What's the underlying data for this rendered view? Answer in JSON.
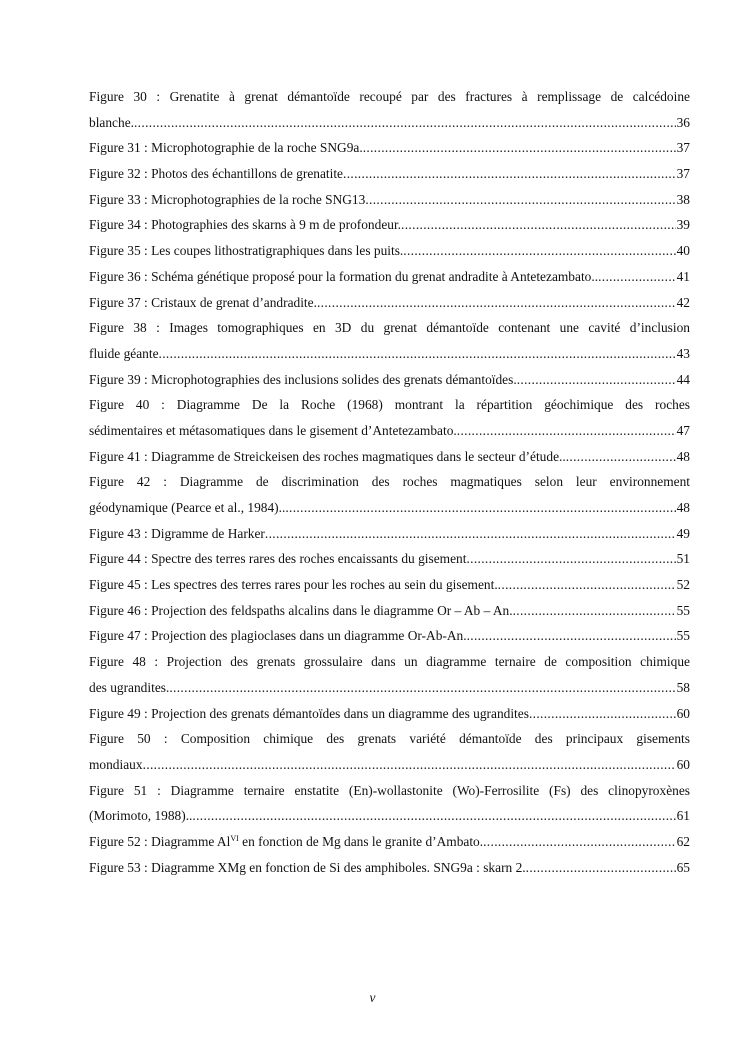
{
  "entries": [
    {
      "lines": [
        "Figure 30 : Grenatite à grenat démantoïde recoupé par des fractures à remplissage de calcédoine",
        "blanche."
      ],
      "page": "36"
    },
    {
      "lines": [
        "Figure 31 : Microphotographie de la roche SNG9a. "
      ],
      "page": "37"
    },
    {
      "lines": [
        "Figure 32 : Photos des échantillons de grenatite"
      ],
      "page": "37"
    },
    {
      "lines": [
        "Figure 33 : Microphotographies de la roche SNG13"
      ],
      "page": "38"
    },
    {
      "lines": [
        "Figure 34 : Photographies des skarns à 9 m de profondeur. "
      ],
      "page": "39"
    },
    {
      "lines": [
        "Figure 35 : Les coupes lithostratigraphiques dans les puits."
      ],
      "page": "40"
    },
    {
      "lines": [
        "Figure 36 : Schéma génétique proposé pour la formation du grenat andradite à Antetezambato.. "
      ],
      "page": "41"
    },
    {
      "lines": [
        "Figure 37 : Cristaux de grenat d’andradite. "
      ],
      "page": "42"
    },
    {
      "lines": [
        "Figure 38 : Images tomographiques en 3D du grenat démantoïde contenant une cavité d’inclusion",
        "fluide géante"
      ],
      "page": "43"
    },
    {
      "lines": [
        "Figure 39 : Microphotographies des inclusions solides des grenats démantoïdes. "
      ],
      "page": "44"
    },
    {
      "lines": [
        "Figure 40 : Diagramme De la Roche (1968) montrant la répartition géochimique des roches",
        "sédimentaires et métasomatiques dans le gisement d’Antetezambato. "
      ],
      "page": "47"
    },
    {
      "lines": [
        "Figure 41 : Diagramme de Streickeisen des roches magmatiques dans le secteur d’étude.."
      ],
      "page": "48"
    },
    {
      "lines": [
        "Figure 42 : Diagramme de discrimination des roches magmatiques selon leur environnement",
        "géodynamique (Pearce et al., 1984).. "
      ],
      "page": "48"
    },
    {
      "lines": [
        "Figure 43 : Digramme de Harker "
      ],
      "page": "49"
    },
    {
      "lines": [
        "Figure 44 : Spectre des terres rares des roches encaissants du gisement"
      ],
      "page": "51"
    },
    {
      "lines": [
        "Figure 45 : Les spectres des terres rares pour les roches au sein du gisement. "
      ],
      "page": "52"
    },
    {
      "lines": [
        "Figure 46 : Projection des feldspaths alcalins dans le diagramme Or – Ab – An."
      ],
      "page": "55"
    },
    {
      "lines": [
        "Figure 47 : Projection des plagioclases dans un diagramme Or-Ab-An. "
      ],
      "page": "55"
    },
    {
      "lines": [
        "Figure 48 : Projection des grenats grossulaire dans un diagramme ternaire de composition chimique",
        "des ugrandites."
      ],
      "page": "58"
    },
    {
      "lines": [
        "Figure 49 : Projection des grenats démantoïdes dans un diagramme des ugrandites"
      ],
      "page": "60"
    },
    {
      "lines": [
        "Figure 50 : Composition chimique des grenats variété démantoïde des principaux gisements",
        "mondiaux"
      ],
      "page": "60"
    },
    {
      "lines": [
        "Figure 51 : Diagramme ternaire enstatite (En)-wollastonite (Wo)-Ferrosilite (Fs) des clinopyroxènes",
        "(Morimoto, 1988).. "
      ],
      "page": "61"
    },
    {
      "lines": [
        "Figure 52 : Diagramme Al",
        " en fonction de Mg dans le granite d’Ambato. "
      ],
      "sup": "VI",
      "page": "62",
      "inline_sup": true
    },
    {
      "lines": [
        "Figure 53 : Diagramme XMg en fonction de Si des amphiboles. SNG9a : skarn 2. "
      ],
      "page": "65"
    }
  ],
  "folio": "v"
}
